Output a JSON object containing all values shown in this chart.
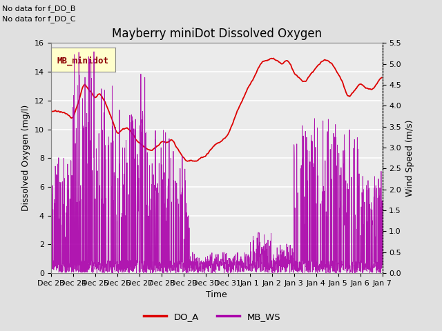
{
  "title": "Mayberry miniDot Dissolved Oxygen",
  "xlabel": "Time",
  "ylabel_left": "Dissolved Oxygen (mg/l)",
  "ylabel_right": "Wind Speed (m/s)",
  "annotation1": "No data for f_DO_B",
  "annotation2": "No data for f_DO_C",
  "legend_box_label": "MB_minidot",
  "legend_entries": [
    "DO_A",
    "MB_WS"
  ],
  "do_color": "#dd0000",
  "ws_color": "#aa00aa",
  "ylim_left": [
    0,
    16
  ],
  "ylim_right": [
    0,
    5.5
  ],
  "yticks_left": [
    0,
    2,
    4,
    6,
    8,
    10,
    12,
    14,
    16
  ],
  "yticks_right": [
    0.0,
    0.5,
    1.0,
    1.5,
    2.0,
    2.5,
    3.0,
    3.5,
    4.0,
    4.5,
    5.0,
    5.5
  ],
  "bg_color": "#e0e0e0",
  "plot_bg_color": "#ebebeb",
  "grid_color": "#ffffff",
  "title_fontsize": 12,
  "label_fontsize": 9,
  "tick_fontsize": 8,
  "annot_fontsize": 8
}
